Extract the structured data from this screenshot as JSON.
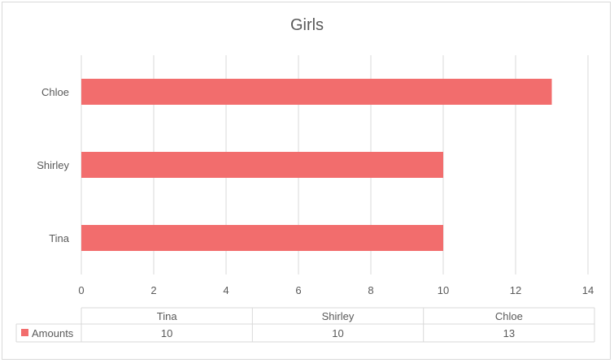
{
  "chart_data": {
    "type": "bar",
    "orientation": "horizontal",
    "title": "Girls",
    "categories": [
      "Tina",
      "Shirley",
      "Chloe"
    ],
    "series": [
      {
        "name": "Amounts",
        "values": [
          10,
          10,
          13
        ],
        "color": "#f26d6d"
      }
    ],
    "xlim": [
      0,
      14
    ],
    "xticks": [
      0,
      2,
      4,
      6,
      8,
      10,
      12,
      14
    ],
    "grid": true,
    "legend": "data-table-left",
    "data_table": {
      "headers": [
        "Tina",
        "Shirley",
        "Chloe"
      ],
      "rows": [
        {
          "label": "Amounts",
          "values": [
            "10",
            "10",
            "13"
          ]
        }
      ]
    },
    "colors": {
      "grid": "#d9d9d9",
      "text": "#595959",
      "bar": "#f26d6d"
    }
  }
}
